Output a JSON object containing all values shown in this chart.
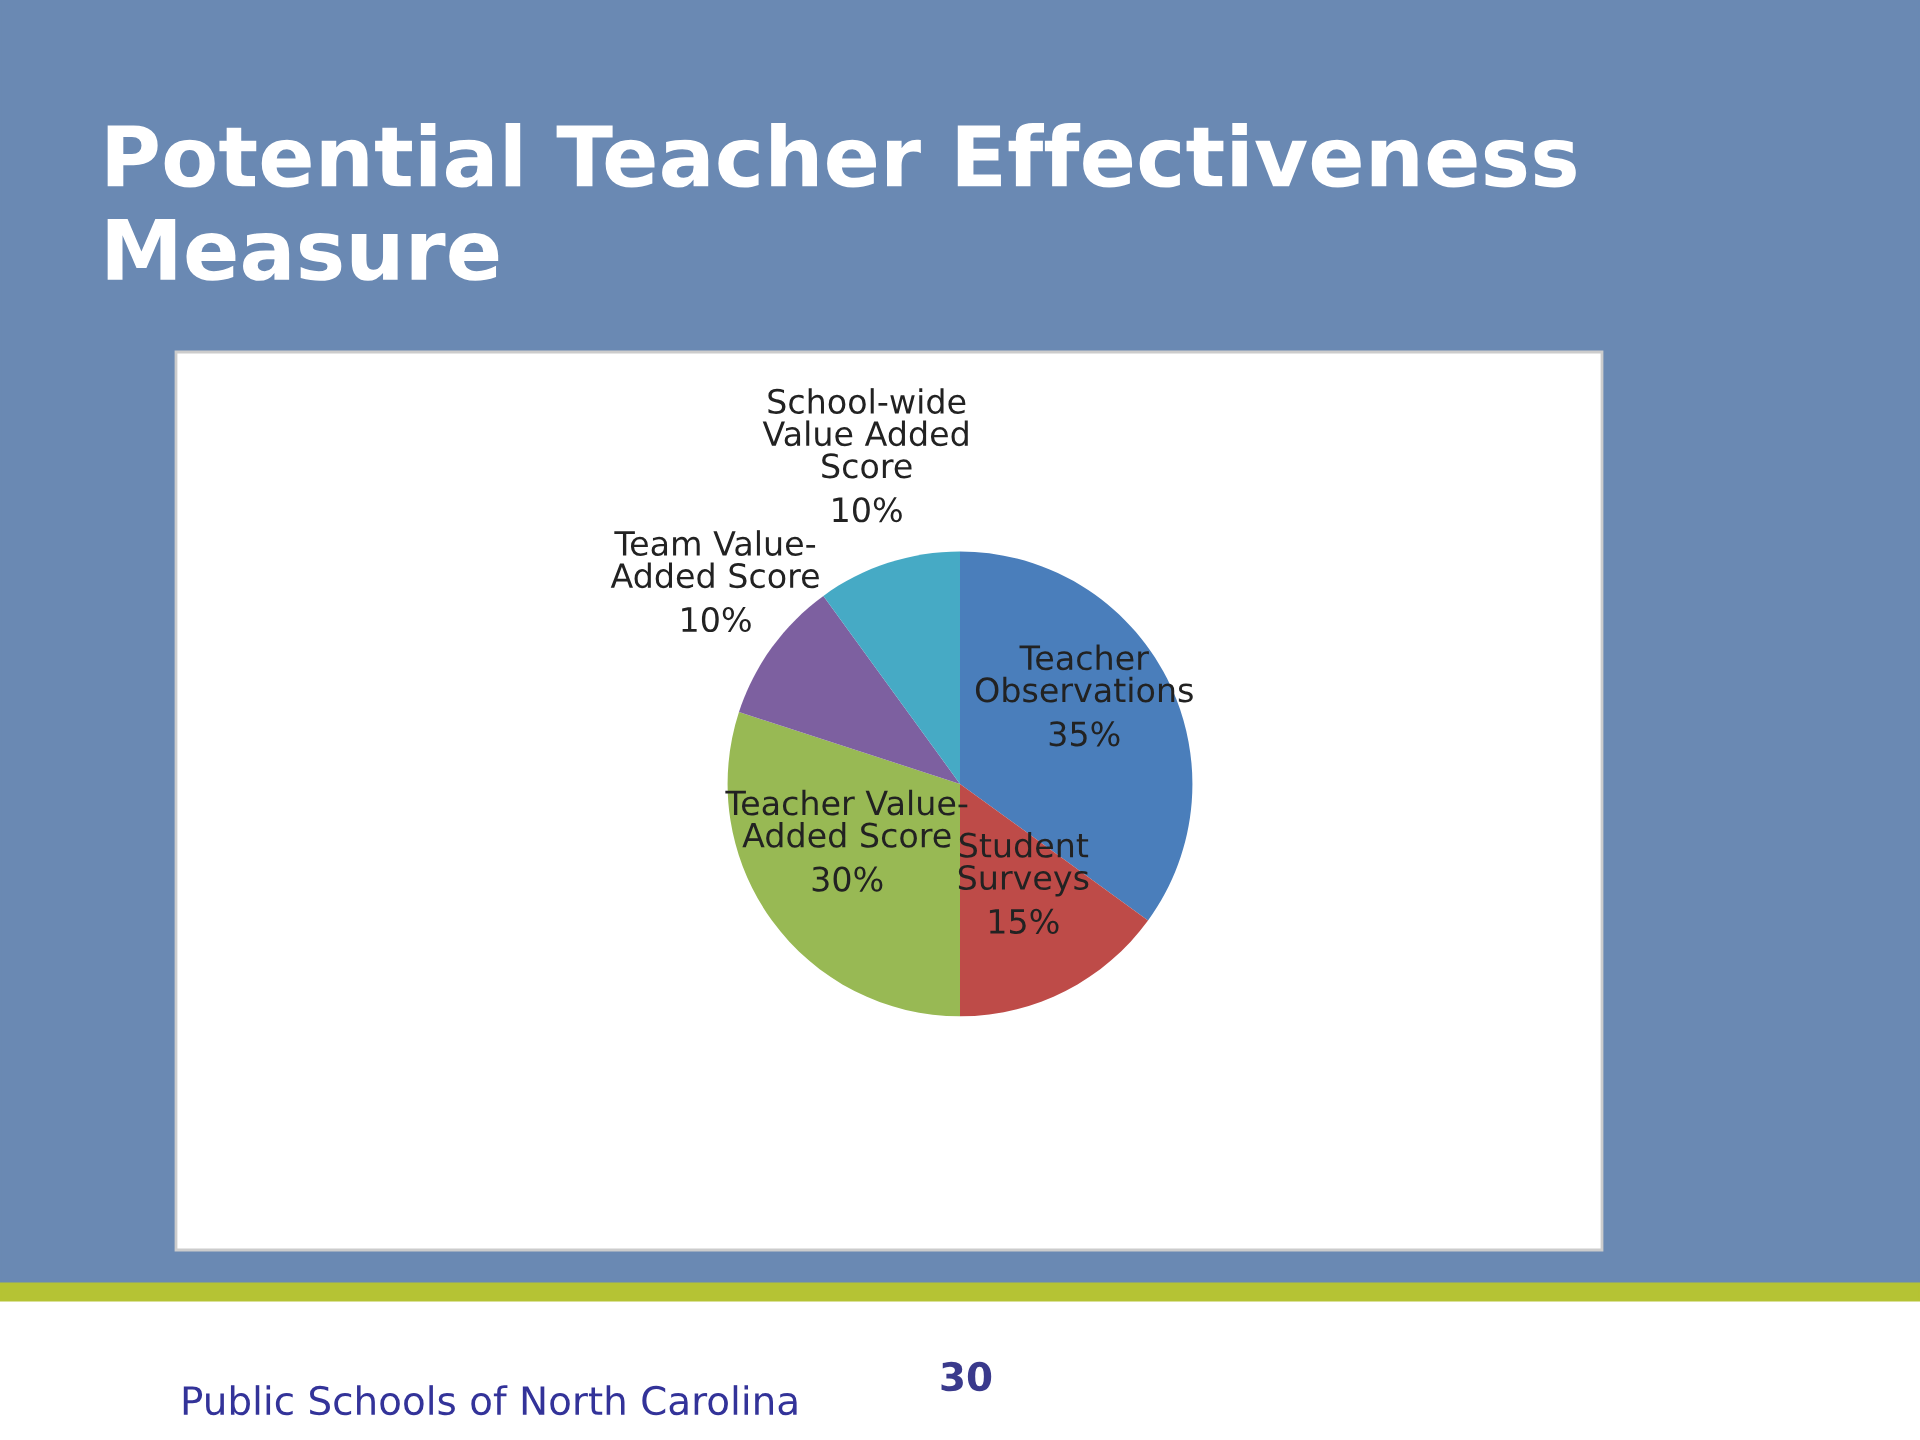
{
  "chart_data": {
    "type": "pie",
    "title": "Potential Teacher Effectiveness Measure",
    "categories": [
      "Teacher\nObservations",
      "Student\nSurveys",
      "Teacher Value-\nAdded Score",
      "Team Value-\nAdded Score",
      "School-wide\nValue Added\nScore"
    ],
    "values": [
      35,
      15,
      30,
      10,
      10
    ],
    "colors": [
      "#4a7ebb",
      "#be4b48",
      "#98b954",
      "#7d60a0",
      "#46aac5"
    ],
    "value_labels": [
      "35%",
      "15%",
      "30%",
      "10%",
      "10%"
    ],
    "annotations": [
      "30",
      "Public Schools of North Carolina"
    ]
  }
}
